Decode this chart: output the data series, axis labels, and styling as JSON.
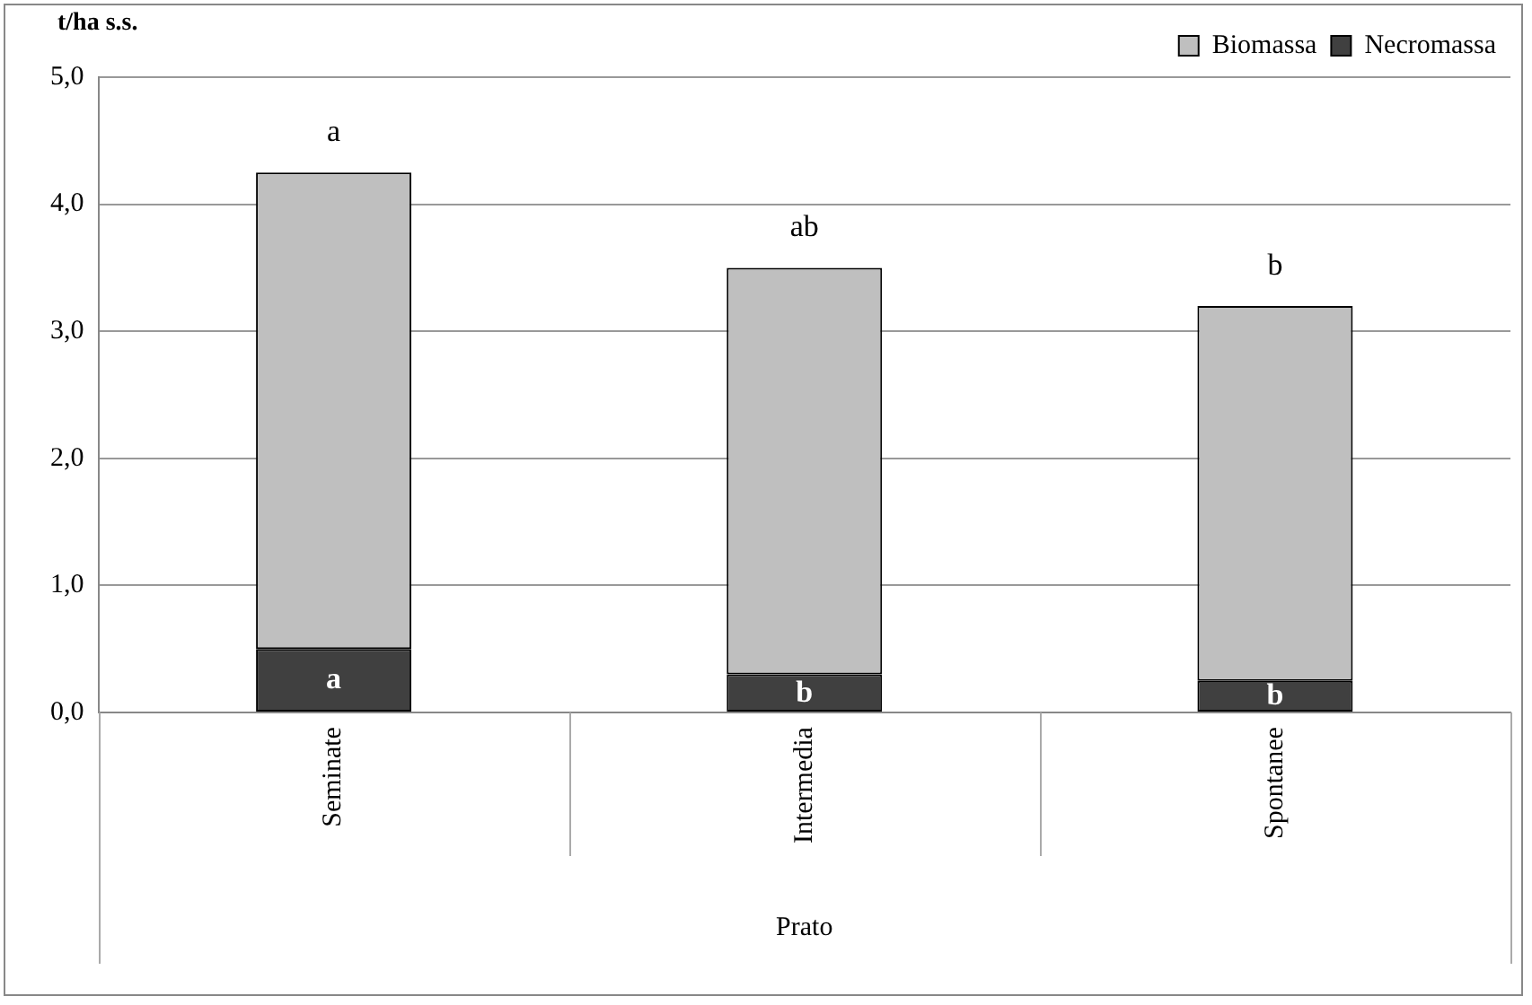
{
  "chart_data": {
    "type": "bar",
    "stacked": true,
    "ylabel": "t/ha s.s.",
    "xlabel": "Prato",
    "categories": [
      "Seminate",
      "Intermedia",
      "Spontanee"
    ],
    "series": [
      {
        "name": "Necromassa",
        "color": "#404040",
        "values": [
          0.5,
          0.3,
          0.25
        ]
      },
      {
        "name": "Biomassa",
        "color": "#bfbfbf",
        "values": [
          3.75,
          3.2,
          2.95
        ]
      }
    ],
    "ylim": [
      0,
      5
    ],
    "yticks": [
      {
        "value": 0,
        "label": "0,0"
      },
      {
        "value": 1,
        "label": "1,0"
      },
      {
        "value": 2,
        "label": "2,0"
      },
      {
        "value": 3,
        "label": "3,0"
      },
      {
        "value": 4,
        "label": "4,0"
      },
      {
        "value": 5,
        "label": "5,0"
      }
    ],
    "grid": "y",
    "legend": "top right",
    "annotations": [
      "a",
      "ab",
      "b",
      "a",
      "b",
      "b"
    ]
  }
}
